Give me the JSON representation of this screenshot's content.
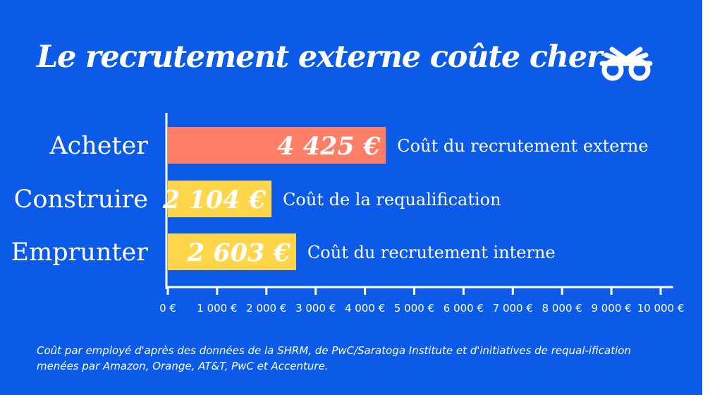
{
  "colors": {
    "background": "#0b5be8",
    "bar_external": "#ff7f66",
    "bar_internal": "#ffd54a",
    "text": "#ffffff"
  },
  "icon": "glasses-icon",
  "chart_data": {
    "type": "bar",
    "orientation": "horizontal",
    "title": "Le recrutement externe coûte cher",
    "categories": [
      "Acheter",
      "Construire",
      "Emprunter"
    ],
    "values": [
      4425,
      2104,
      2603
    ],
    "value_labels": [
      "4 425 €",
      "2 104 €",
      "2 603 €"
    ],
    "bar_colors": [
      "#ff7f66",
      "#ffd54a",
      "#ffd54a"
    ],
    "annotations": [
      "Coût du recrutement externe",
      "Coût de la requalification",
      "Coût du recrutement interne"
    ],
    "xlim": [
      0,
      10000
    ],
    "xticks": [
      0,
      1000,
      2000,
      3000,
      4000,
      5000,
      6000,
      7000,
      8000,
      9000,
      10000
    ],
    "xtick_labels": [
      "0 €",
      "1 000 €",
      "2 000 €",
      "3 000 €",
      "4 000 €",
      "5 000 €",
      "6 000 €",
      "7 000 €",
      "8 000 €",
      "9 000 €",
      "10 000 €"
    ],
    "grid": false,
    "legend": "none"
  },
  "footnote": "Coût par employé d'après des données de la SHRM, de PwC/Saratoga Institute et d'initiatives de requal-ification menées par Amazon, Orange, AT&T, PwC et Accenture."
}
